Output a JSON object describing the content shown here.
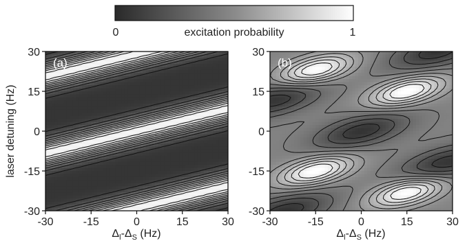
{
  "chart_data": [
    {
      "type": "heatmap",
      "panel_label": "(a)",
      "x_name": "Δ",
      "x_sub1": "l",
      "x_mid": "-Δ",
      "x_sub2": "S",
      "x_unit": " (Hz)",
      "ylabel": "laser detuning (Hz)",
      "xlim": [
        -30,
        30
      ],
      "ylim": [
        -30,
        30
      ],
      "xticks": [
        "-30",
        "-15",
        "0",
        "15",
        "30"
      ],
      "yticks": [
        "30",
        "15",
        "0",
        "-15",
        "-30"
      ],
      "bright_bands": [
        {
          "slope": 0.28,
          "intercept": 29
        },
        {
          "slope": 0.28,
          "intercept": 0
        },
        {
          "slope": 0.28,
          "intercept": -29
        }
      ]
    },
    {
      "type": "heatmap",
      "panel_label": "(b)",
      "x_name": "Δ",
      "x_sub1": "l",
      "x_mid": "-Δ",
      "x_sub2": "S",
      "x_unit": " (Hz)",
      "xlim": [
        -30,
        30
      ],
      "ylim": [
        -30,
        30
      ],
      "xticks": [
        "-30",
        "-15",
        "0",
        "15",
        "30"
      ],
      "yticks": [
        "30",
        "15",
        "0",
        "-15",
        "-30"
      ],
      "bright_islands": [
        {
          "x": -15,
          "y": 23
        },
        {
          "x": 15,
          "y": 15
        },
        {
          "x": -15,
          "y": -15
        },
        {
          "x": 15,
          "y": -23
        }
      ],
      "dark_islands": [
        {
          "x": 0,
          "y": 0
        },
        {
          "x": -28,
          "y": 12
        },
        {
          "x": 28,
          "y": -12
        },
        {
          "x": 25,
          "y": 30
        },
        {
          "x": -25,
          "y": -30
        }
      ]
    }
  ],
  "colorbar": {
    "label": "excitation probability",
    "min_label": "0",
    "max_label": "1",
    "color_low": "#2a2a2a",
    "color_high": "#ffffff"
  },
  "colors": {
    "contour": "#111111",
    "frame": "#111111"
  }
}
